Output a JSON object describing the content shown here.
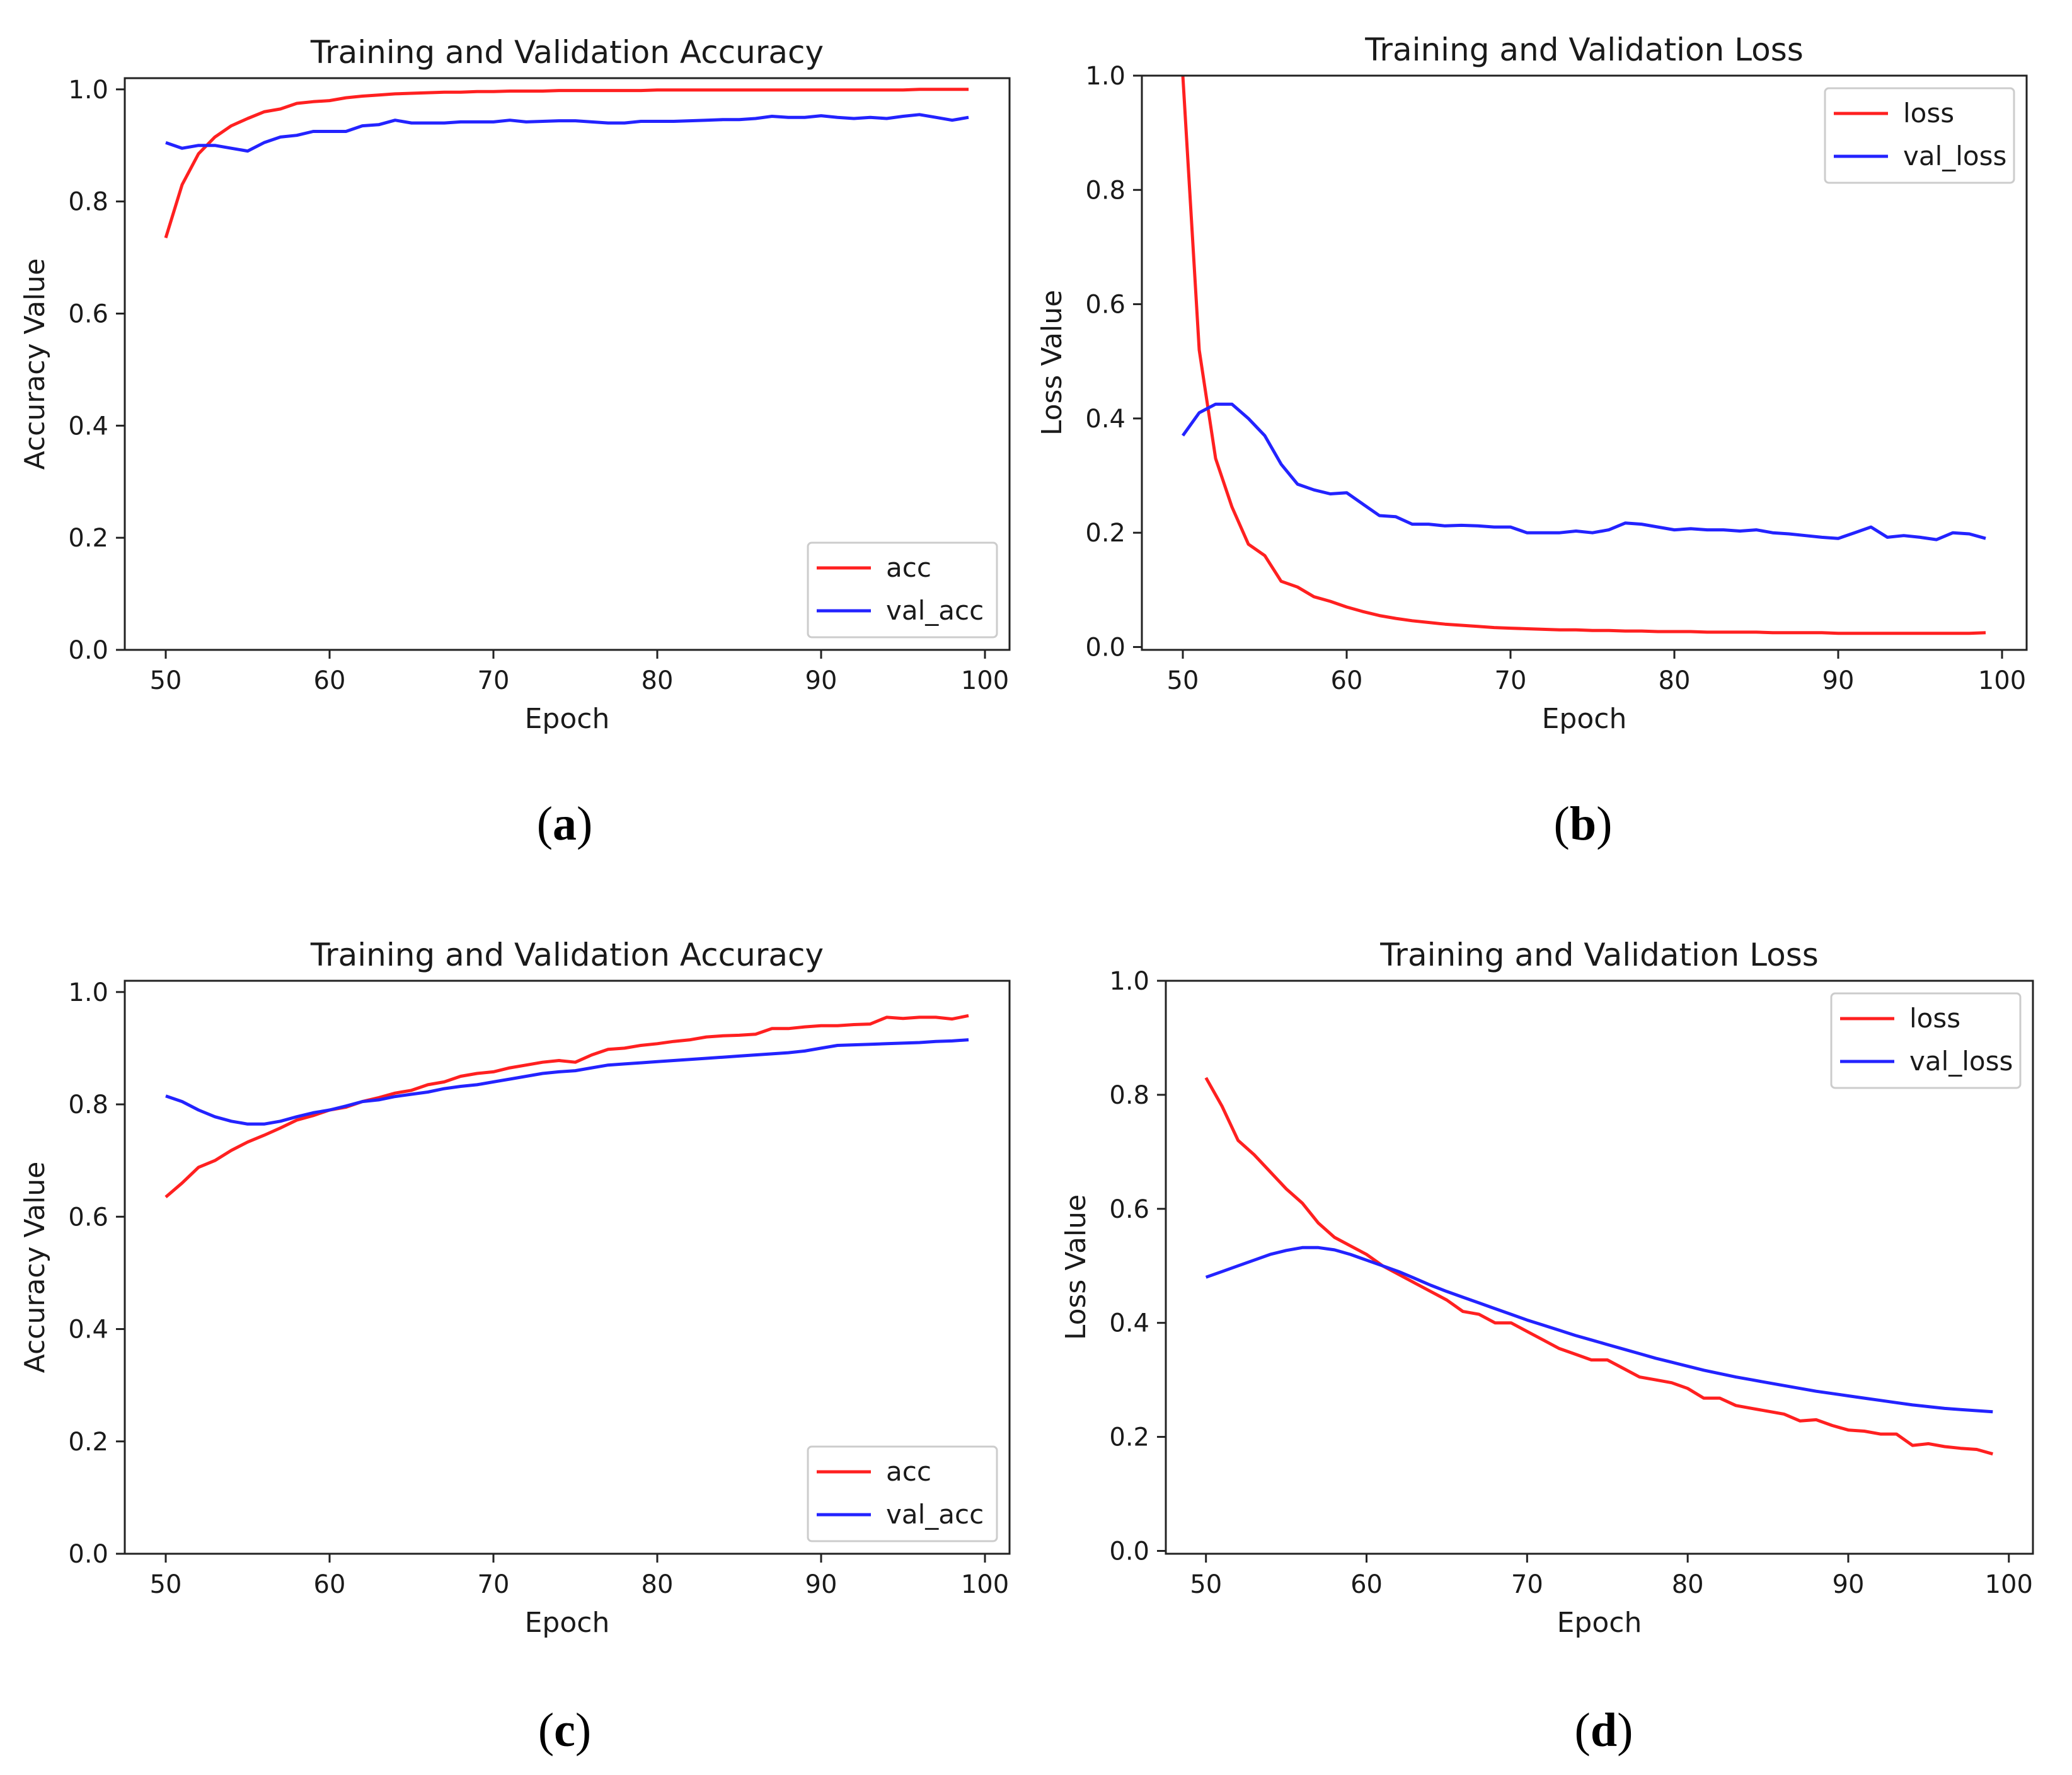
{
  "figure": {
    "panel_labels": [
      {
        "open": "(",
        "letter": "a",
        "close": ")"
      },
      {
        "open": "(",
        "letter": "b",
        "close": ")"
      },
      {
        "open": "(",
        "letter": "c",
        "close": ")"
      },
      {
        "open": "(",
        "letter": "d",
        "close": ")"
      }
    ]
  },
  "colors": {
    "train": "#ff2020",
    "val": "#2323ff"
  },
  "chart_data": [
    {
      "type": "line",
      "title": "Training and Validation Accuracy",
      "xlabel": "Epoch",
      "ylabel": "Accuracy Value",
      "xlim": [
        47.5,
        101.5
      ],
      "ylim": [
        0.0,
        1.02
      ],
      "xticks": [
        50,
        60,
        70,
        80,
        90,
        100
      ],
      "yticks": [
        0.0,
        0.2,
        0.4,
        0.6,
        0.8,
        1.0
      ],
      "ytick_labels": [
        "0.0",
        "0.2",
        "0.4",
        "0.6",
        "0.8",
        "1.0"
      ],
      "legend_position": "lower-right",
      "x": [
        50,
        51,
        52,
        53,
        54,
        55,
        56,
        57,
        58,
        59,
        60,
        61,
        62,
        63,
        64,
        65,
        66,
        67,
        68,
        69,
        70,
        71,
        72,
        73,
        74,
        75,
        76,
        77,
        78,
        79,
        80,
        81,
        82,
        83,
        84,
        85,
        86,
        87,
        88,
        89,
        90,
        91,
        92,
        93,
        94,
        95,
        96,
        97,
        98,
        99
      ],
      "series": [
        {
          "name": "acc",
          "color_key": "train",
          "values": [
            0.735,
            0.83,
            0.885,
            0.915,
            0.935,
            0.948,
            0.96,
            0.965,
            0.975,
            0.978,
            0.98,
            0.985,
            0.988,
            0.99,
            0.992,
            0.993,
            0.994,
            0.995,
            0.995,
            0.996,
            0.996,
            0.997,
            0.997,
            0.997,
            0.998,
            0.998,
            0.998,
            0.998,
            0.998,
            0.998,
            0.999,
            0.999,
            0.999,
            0.999,
            0.999,
            0.999,
            0.999,
            0.999,
            0.999,
            0.999,
            0.999,
            0.999,
            0.999,
            0.999,
            0.999,
            0.999,
            1.0,
            1.0,
            1.0,
            1.0
          ]
        },
        {
          "name": "val_acc",
          "color_key": "val",
          "values": [
            0.905,
            0.895,
            0.9,
            0.9,
            0.895,
            0.89,
            0.905,
            0.915,
            0.918,
            0.925,
            0.925,
            0.925,
            0.935,
            0.937,
            0.945,
            0.94,
            0.94,
            0.94,
            0.942,
            0.942,
            0.942,
            0.945,
            0.942,
            0.943,
            0.944,
            0.944,
            0.942,
            0.94,
            0.94,
            0.943,
            0.943,
            0.943,
            0.944,
            0.945,
            0.946,
            0.946,
            0.948,
            0.952,
            0.95,
            0.95,
            0.953,
            0.95,
            0.948,
            0.95,
            0.948,
            0.952,
            0.955,
            0.95,
            0.945,
            0.95
          ]
        }
      ]
    },
    {
      "type": "line",
      "title": "Training and Validation Loss",
      "xlabel": "Epoch",
      "ylabel": "Loss Value",
      "xlim": [
        47.5,
        101.5
      ],
      "ylim": [
        -0.005,
        1.0
      ],
      "xticks": [
        50,
        60,
        70,
        80,
        90,
        100
      ],
      "yticks": [
        0.0,
        0.2,
        0.4,
        0.6,
        0.8,
        1.0
      ],
      "ytick_labels": [
        "0.0",
        "0.2",
        "0.4",
        "0.6",
        "0.8",
        "1.0"
      ],
      "legend_position": "upper-right",
      "x": [
        50,
        51,
        52,
        53,
        54,
        55,
        56,
        57,
        58,
        59,
        60,
        61,
        62,
        63,
        64,
        65,
        66,
        67,
        68,
        69,
        70,
        71,
        72,
        73,
        74,
        75,
        76,
        77,
        78,
        79,
        80,
        81,
        82,
        83,
        84,
        85,
        86,
        87,
        88,
        89,
        90,
        91,
        92,
        93,
        94,
        95,
        96,
        97,
        98,
        99
      ],
      "series": [
        {
          "name": "loss",
          "color_key": "train",
          "values": [
            1.0,
            0.52,
            0.33,
            0.245,
            0.18,
            0.16,
            0.115,
            0.105,
            0.088,
            0.08,
            0.07,
            0.062,
            0.055,
            0.05,
            0.046,
            0.043,
            0.04,
            0.038,
            0.036,
            0.034,
            0.033,
            0.032,
            0.031,
            0.03,
            0.03,
            0.029,
            0.029,
            0.028,
            0.028,
            0.027,
            0.027,
            0.027,
            0.026,
            0.026,
            0.026,
            0.026,
            0.025,
            0.025,
            0.025,
            0.025,
            0.024,
            0.024,
            0.024,
            0.024,
            0.024,
            0.024,
            0.024,
            0.024,
            0.024,
            0.025
          ]
        },
        {
          "name": "val_loss",
          "color_key": "val",
          "values": [
            0.37,
            0.41,
            0.425,
            0.425,
            0.4,
            0.37,
            0.32,
            0.285,
            0.275,
            0.268,
            0.27,
            0.25,
            0.23,
            0.228,
            0.215,
            0.215,
            0.212,
            0.213,
            0.212,
            0.21,
            0.21,
            0.2,
            0.2,
            0.2,
            0.203,
            0.2,
            0.205,
            0.217,
            0.215,
            0.21,
            0.205,
            0.207,
            0.205,
            0.205,
            0.203,
            0.205,
            0.2,
            0.198,
            0.195,
            0.192,
            0.19,
            0.2,
            0.21,
            0.192,
            0.195,
            0.192,
            0.188,
            0.2,
            0.198,
            0.19
          ]
        }
      ]
    },
    {
      "type": "line",
      "title": "Training and Validation Accuracy",
      "xlabel": "Epoch",
      "ylabel": "Accuracy Value",
      "xlim": [
        47.5,
        101.5
      ],
      "ylim": [
        0.0,
        1.02
      ],
      "xticks": [
        50,
        60,
        70,
        80,
        90,
        100
      ],
      "yticks": [
        0.0,
        0.2,
        0.4,
        0.6,
        0.8,
        1.0
      ],
      "ytick_labels": [
        "0.0",
        "0.2",
        "0.4",
        "0.6",
        "0.8",
        "1.0"
      ],
      "legend_position": "lower-right",
      "x": [
        50,
        51,
        52,
        53,
        54,
        55,
        56,
        57,
        58,
        59,
        60,
        61,
        62,
        63,
        64,
        65,
        66,
        67,
        68,
        69,
        70,
        71,
        72,
        73,
        74,
        75,
        76,
        77,
        78,
        79,
        80,
        81,
        82,
        83,
        84,
        85,
        86,
        87,
        88,
        89,
        90,
        91,
        92,
        93,
        94,
        95,
        96,
        97,
        98,
        99
      ],
      "series": [
        {
          "name": "acc",
          "color_key": "train",
          "values": [
            0.635,
            0.66,
            0.688,
            0.7,
            0.718,
            0.733,
            0.745,
            0.758,
            0.772,
            0.78,
            0.79,
            0.795,
            0.805,
            0.812,
            0.82,
            0.825,
            0.835,
            0.84,
            0.85,
            0.855,
            0.858,
            0.865,
            0.87,
            0.875,
            0.878,
            0.875,
            0.888,
            0.898,
            0.9,
            0.905,
            0.908,
            0.912,
            0.915,
            0.92,
            0.922,
            0.923,
            0.925,
            0.935,
            0.935,
            0.938,
            0.94,
            0.94,
            0.942,
            0.943,
            0.955,
            0.953,
            0.955,
            0.955,
            0.952,
            0.958
          ]
        },
        {
          "name": "val_acc",
          "color_key": "val",
          "values": [
            0.815,
            0.805,
            0.79,
            0.778,
            0.77,
            0.765,
            0.765,
            0.77,
            0.778,
            0.785,
            0.79,
            0.797,
            0.805,
            0.808,
            0.814,
            0.818,
            0.822,
            0.828,
            0.832,
            0.835,
            0.84,
            0.845,
            0.85,
            0.855,
            0.858,
            0.86,
            0.865,
            0.87,
            0.872,
            0.874,
            0.876,
            0.878,
            0.88,
            0.882,
            0.884,
            0.886,
            0.888,
            0.89,
            0.892,
            0.895,
            0.9,
            0.905,
            0.906,
            0.907,
            0.908,
            0.909,
            0.91,
            0.912,
            0.913,
            0.915
          ]
        }
      ]
    },
    {
      "type": "line",
      "title": "Training and Validation Loss",
      "xlabel": "Epoch",
      "ylabel": "Loss Value",
      "xlim": [
        47.5,
        101.5
      ],
      "ylim": [
        -0.005,
        1.0
      ],
      "xticks": [
        50,
        60,
        70,
        80,
        90,
        100
      ],
      "yticks": [
        0.0,
        0.2,
        0.4,
        0.6,
        0.8,
        1.0
      ],
      "ytick_labels": [
        "0.0",
        "0.2",
        "0.4",
        "0.6",
        "0.8",
        "1.0"
      ],
      "legend_position": "upper-right",
      "x": [
        50,
        51,
        52,
        53,
        54,
        55,
        56,
        57,
        58,
        59,
        60,
        61,
        62,
        63,
        64,
        65,
        66,
        67,
        68,
        69,
        70,
        71,
        72,
        73,
        74,
        75,
        76,
        77,
        78,
        79,
        80,
        81,
        82,
        83,
        84,
        85,
        86,
        87,
        88,
        89,
        90,
        91,
        92,
        93,
        94,
        95,
        96,
        97,
        98,
        99
      ],
      "series": [
        {
          "name": "loss",
          "color_key": "train",
          "values": [
            0.83,
            0.78,
            0.72,
            0.695,
            0.665,
            0.635,
            0.61,
            0.575,
            0.55,
            0.535,
            0.52,
            0.5,
            0.485,
            0.47,
            0.455,
            0.44,
            0.42,
            0.415,
            0.4,
            0.4,
            0.385,
            0.37,
            0.355,
            0.345,
            0.335,
            0.335,
            0.32,
            0.305,
            0.3,
            0.295,
            0.285,
            0.268,
            0.268,
            0.255,
            0.25,
            0.245,
            0.24,
            0.228,
            0.23,
            0.22,
            0.212,
            0.21,
            0.205,
            0.205,
            0.185,
            0.188,
            0.183,
            0.18,
            0.178,
            0.17
          ]
        },
        {
          "name": "val_loss",
          "color_key": "val",
          "values": [
            0.48,
            0.49,
            0.5,
            0.51,
            0.52,
            0.527,
            0.532,
            0.532,
            0.528,
            0.52,
            0.51,
            0.5,
            0.49,
            0.478,
            0.466,
            0.455,
            0.445,
            0.435,
            0.425,
            0.415,
            0.405,
            0.396,
            0.387,
            0.378,
            0.37,
            0.362,
            0.354,
            0.346,
            0.338,
            0.331,
            0.324,
            0.317,
            0.311,
            0.305,
            0.3,
            0.295,
            0.29,
            0.285,
            0.28,
            0.276,
            0.272,
            0.268,
            0.264,
            0.26,
            0.256,
            0.253,
            0.25,
            0.248,
            0.246,
            0.244
          ]
        }
      ]
    }
  ]
}
